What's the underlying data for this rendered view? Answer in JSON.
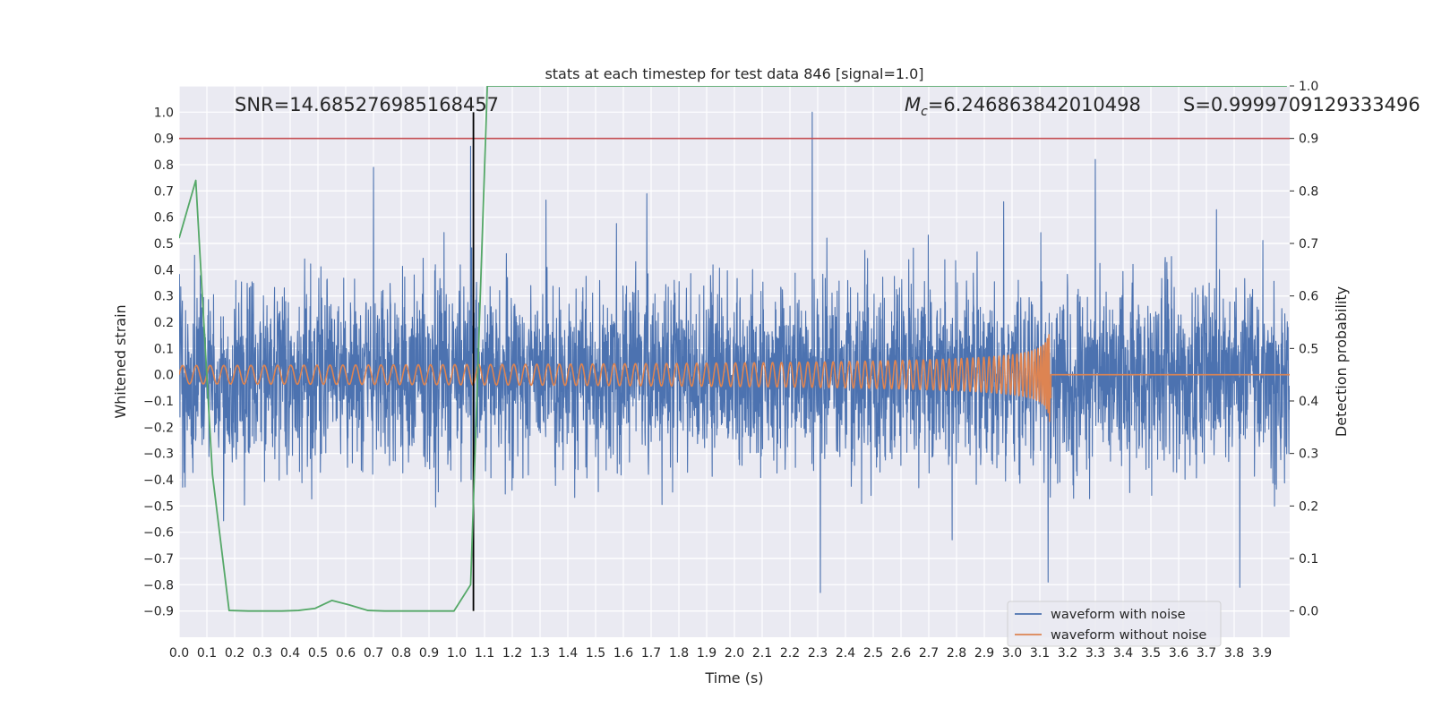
{
  "chart_data": {
    "type": "line",
    "title": "stats at each timestep for test data 846 [signal=1.0]",
    "xlabel": "Time (s)",
    "ylabel_left": "Whitened strain",
    "ylabel_right": "Detection probability",
    "xlim": [
      0.0,
      4.0
    ],
    "ylim_left": [
      -1.0,
      1.1
    ],
    "ylim_right": [
      -0.05,
      1.0
    ],
    "x_ticks": [
      "0.0",
      "0.1",
      "0.2",
      "0.3",
      "0.4",
      "0.5",
      "0.6",
      "0.7",
      "0.8",
      "0.9",
      "1.0",
      "1.1",
      "1.2",
      "1.3",
      "1.4",
      "1.5",
      "1.6",
      "1.7",
      "1.8",
      "1.9",
      "2.0",
      "2.1",
      "2.2",
      "2.3",
      "2.4",
      "2.5",
      "2.6",
      "2.7",
      "2.8",
      "2.9",
      "3.0",
      "3.1",
      "3.2",
      "3.3",
      "3.4",
      "3.5",
      "3.6",
      "3.7",
      "3.8",
      "3.9"
    ],
    "y_ticks_left": [
      "−0.9",
      "−0.8",
      "−0.7",
      "−0.6",
      "−0.5",
      "−0.4",
      "−0.3",
      "−0.2",
      "−0.1",
      "0.0",
      "0.1",
      "0.2",
      "0.3",
      "0.4",
      "0.5",
      "0.6",
      "0.7",
      "0.8",
      "0.9",
      "1.0"
    ],
    "y_ticks_right": [
      "0.0",
      "0.1",
      "0.2",
      "0.3",
      "0.4",
      "0.5",
      "0.6",
      "0.7",
      "0.8",
      "0.9",
      "1.0"
    ],
    "grid": true,
    "legend_position": "lower-right",
    "annotations": {
      "snr": "SNR=14.685276985168457",
      "mc_symbol": "M",
      "mc_sub": "c",
      "mc_value": "=6.246863842010498",
      "s": "S=0.9999709129333496"
    },
    "series": [
      {
        "name": "waveform with noise",
        "axis": "left",
        "color": "#4c72b0",
        "description_kind": "noise",
        "amplitude_std": 0.17,
        "peaks": [
          {
            "x": 1.05,
            "y": 0.87
          },
          {
            "x": 2.28,
            "y": 1.0
          },
          {
            "x": 3.3,
            "y": 0.82
          },
          {
            "x": 0.7,
            "y": 0.79
          },
          {
            "x": 2.31,
            "y": -0.83
          },
          {
            "x": 3.13,
            "y": -0.79
          },
          {
            "x": 3.82,
            "y": -0.81
          }
        ]
      },
      {
        "name": "waveform without noise",
        "axis": "left",
        "color": "#dd8452",
        "description_kind": "chirp",
        "merger_time": 3.14,
        "start_amplitude": 0.035,
        "peak_amplitude": 0.34,
        "start_frequency": 20
      },
      {
        "name": "detection probability",
        "axis": "right",
        "color": "#55a868",
        "x": [
          0.0,
          0.06,
          0.12,
          0.18,
          0.25,
          0.31,
          0.37,
          0.43,
          0.49,
          0.55,
          0.61,
          0.68,
          0.74,
          0.8,
          0.86,
          0.92,
          0.99,
          1.05,
          1.11,
          1.17,
          3.99
        ],
        "y": [
          0.71,
          0.82,
          0.26,
          0.001,
          0.0,
          0.0,
          0.0,
          0.001,
          0.005,
          0.02,
          0.012,
          0.001,
          0.0,
          0.0,
          0.0,
          0.0,
          0.0,
          0.05,
          1.0,
          1.0,
          1.0
        ]
      }
    ],
    "threshold": {
      "axis": "right",
      "y": 0.9,
      "color": "#c44e52"
    },
    "vertical_marker": {
      "x": 1.06,
      "color": "#000000"
    }
  }
}
